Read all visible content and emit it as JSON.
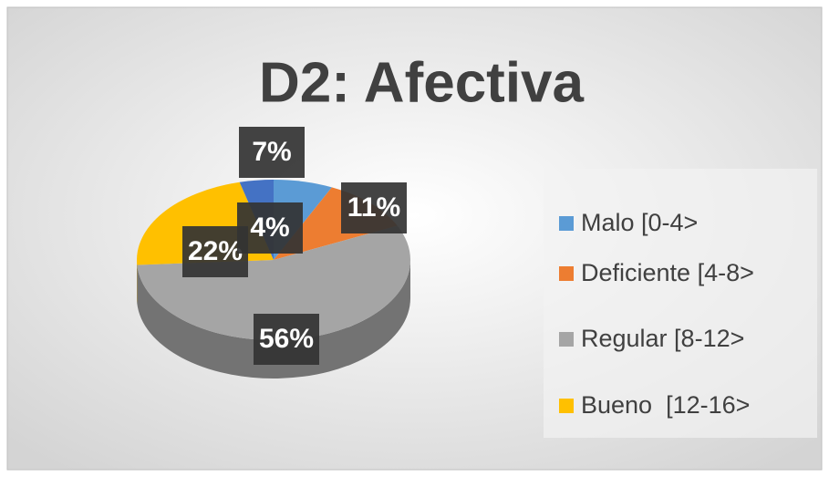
{
  "chart_data": {
    "type": "pie3d",
    "title": "D2: Afectiva",
    "categories": [
      "Malo [0-4>",
      "Deficiente [4-8>",
      "Regular [8-12>",
      "Bueno  [12-16>",
      null
    ],
    "values": [
      7,
      11,
      56,
      22,
      4
    ],
    "value_labels": [
      "7%",
      "11%",
      "56%",
      "22%",
      "4%"
    ],
    "colors": [
      "#5b9bd5",
      "#ed7d31",
      "#a5a5a5",
      "#ffc000",
      "#4472c4"
    ],
    "legend": "right"
  }
}
